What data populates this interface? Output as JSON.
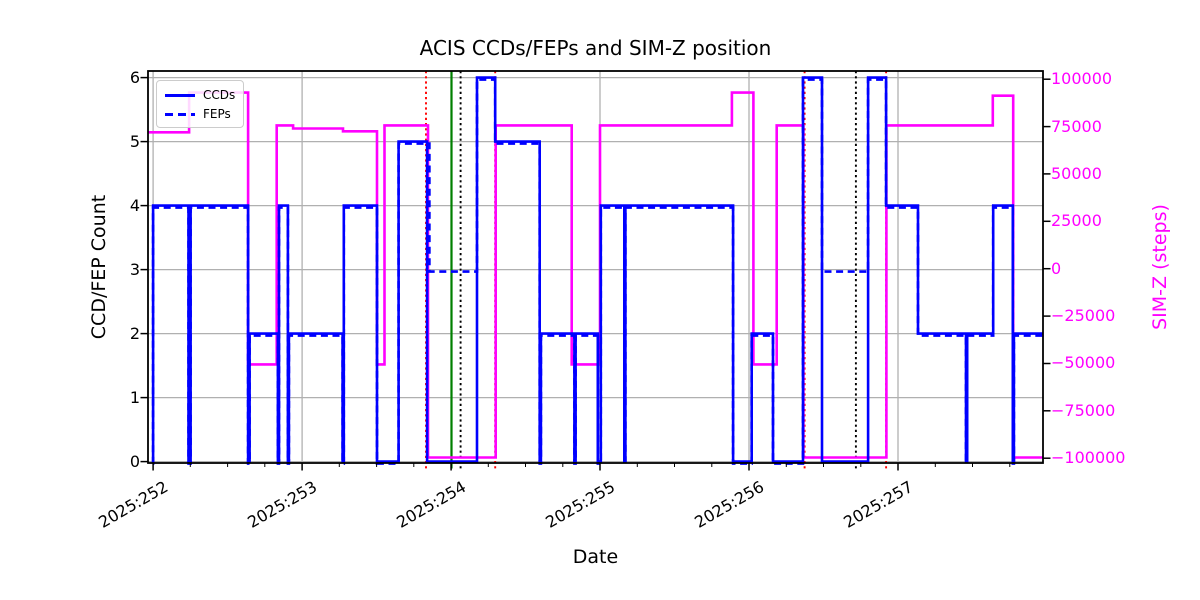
{
  "chart_data": {
    "type": "line",
    "title": "ACIS CCDs/FEPs and SIM-Z position",
    "xlabel": "Date",
    "ylabel_left": "CCD/FEP Count",
    "ylabel_right": "SIM-Z (steps)",
    "x_range": [
      252,
      258
    ],
    "ylim_left": [
      0,
      6
    ],
    "ylim_right": [
      -100000,
      100000
    ],
    "grid": true,
    "legend_position": "upper left",
    "x_ticks": [
      {
        "v": 252,
        "label": "2025:252"
      },
      {
        "v": 253,
        "label": "2025:253"
      },
      {
        "v": 254,
        "label": "2025:254"
      },
      {
        "v": 255,
        "label": "2025:255"
      },
      {
        "v": 256,
        "label": "2025:256"
      },
      {
        "v": 257,
        "label": "2025:257"
      }
    ],
    "x_minor_tick_step": 0.25,
    "y_ticks_left": [
      {
        "v": 0,
        "label": "0"
      },
      {
        "v": 1,
        "label": "1"
      },
      {
        "v": 2,
        "label": "2"
      },
      {
        "v": 3,
        "label": "3"
      },
      {
        "v": 4,
        "label": "4"
      },
      {
        "v": 5,
        "label": "5"
      },
      {
        "v": 6,
        "label": "6"
      }
    ],
    "y_ticks_right": [
      {
        "v": 100000,
        "label": "100000"
      },
      {
        "v": 75000,
        "label": "75000"
      },
      {
        "v": 50000,
        "label": "50000"
      },
      {
        "v": 25000,
        "label": "25000"
      },
      {
        "v": 0,
        "label": "0"
      },
      {
        "v": -25000,
        "label": "−25000"
      },
      {
        "v": -50000,
        "label": "−50000"
      },
      {
        "v": -75000,
        "label": "−75000"
      },
      {
        "v": -100000,
        "label": "−100000"
      }
    ],
    "legend": [
      {
        "label": "CCDs",
        "style": "solid",
        "color": "#0000ff"
      },
      {
        "label": "FEPs",
        "style": "dashed",
        "color": "#0000ff"
      }
    ],
    "colors": {
      "ccds": "#0000ff",
      "feps": "#0000ff",
      "simz": "#ff00ff",
      "grid": "#b0b0b0",
      "radzone_line": "#ff0000",
      "now_line": "#008000",
      "perigee_line": "#000000"
    },
    "x_end": 257.973,
    "series": [
      {
        "name": "SIM-Z",
        "axis": "right",
        "color": "#ff00ff",
        "dash": "none",
        "points": [
          [
            251.966,
            72000
          ],
          [
            252.242,
            92904
          ],
          [
            252.638,
            -50505
          ],
          [
            252.83,
            75624
          ],
          [
            252.94,
            74000
          ],
          [
            253.275,
            72500
          ],
          [
            253.503,
            -50505
          ],
          [
            253.553,
            75624
          ],
          [
            253.845,
            -99616
          ],
          [
            254.3,
            75624
          ],
          [
            254.81,
            -50505
          ],
          [
            255.0,
            75624
          ],
          [
            255.885,
            92904
          ],
          [
            256.029,
            -50505
          ],
          [
            256.186,
            75624
          ],
          [
            256.365,
            -99616
          ],
          [
            256.922,
            75624
          ],
          [
            257.636,
            91300
          ],
          [
            257.773,
            -99616
          ]
        ]
      },
      {
        "name": "CCDs",
        "axis": "left",
        "color": "#0000ff",
        "dash": "none",
        "points": [
          [
            251.999,
            0
          ],
          [
            252.0,
            4
          ],
          [
            252.238,
            0
          ],
          [
            252.252,
            4
          ],
          [
            252.638,
            0
          ],
          [
            252.648,
            2
          ],
          [
            252.838,
            0
          ],
          [
            252.845,
            4
          ],
          [
            252.905,
            0
          ],
          [
            252.912,
            2
          ],
          [
            253.272,
            0
          ],
          [
            253.28,
            4
          ],
          [
            253.503,
            0
          ],
          [
            253.648,
            5
          ],
          [
            253.839,
            0
          ],
          [
            254.174,
            6
          ],
          [
            254.296,
            5
          ],
          [
            254.595,
            0
          ],
          [
            254.603,
            2
          ],
          [
            254.828,
            0
          ],
          [
            254.836,
            2
          ],
          [
            254.985,
            0
          ],
          [
            255.005,
            4
          ],
          [
            255.163,
            0
          ],
          [
            255.17,
            4
          ],
          [
            255.893,
            0
          ],
          [
            256.018,
            2
          ],
          [
            256.161,
            0
          ],
          [
            256.362,
            6
          ],
          [
            256.49,
            0
          ],
          [
            256.799,
            6
          ],
          [
            256.92,
            4
          ],
          [
            257.134,
            2
          ],
          [
            257.456,
            0
          ],
          [
            257.464,
            2
          ],
          [
            257.639,
            4
          ],
          [
            257.77,
            0
          ],
          [
            257.778,
            2
          ]
        ]
      },
      {
        "name": "FEPs",
        "axis": "left",
        "color": "#0000ff",
        "dash": "dashed",
        "points": [
          [
            251.999,
            0
          ],
          [
            252.0,
            4
          ],
          [
            252.238,
            0
          ],
          [
            252.252,
            4
          ],
          [
            252.638,
            0
          ],
          [
            252.648,
            2
          ],
          [
            252.838,
            0
          ],
          [
            252.845,
            4
          ],
          [
            252.905,
            0
          ],
          [
            252.912,
            2
          ],
          [
            253.272,
            0
          ],
          [
            253.28,
            4
          ],
          [
            253.503,
            0
          ],
          [
            253.648,
            5
          ],
          [
            253.855,
            3
          ],
          [
            254.174,
            6
          ],
          [
            254.296,
            5
          ],
          [
            254.595,
            0
          ],
          [
            254.603,
            2
          ],
          [
            254.828,
            0
          ],
          [
            254.836,
            2
          ],
          [
            254.985,
            0
          ],
          [
            255.005,
            4
          ],
          [
            255.163,
            0
          ],
          [
            255.17,
            4
          ],
          [
            255.893,
            0
          ],
          [
            256.018,
            2
          ],
          [
            256.161,
            0
          ],
          [
            256.362,
            6
          ],
          [
            256.49,
            3
          ],
          [
            256.799,
            6
          ],
          [
            256.92,
            4
          ],
          [
            257.134,
            2
          ],
          [
            257.456,
            0
          ],
          [
            257.464,
            2
          ],
          [
            257.639,
            4
          ],
          [
            257.77,
            0
          ],
          [
            257.778,
            2
          ]
        ]
      }
    ],
    "vlines": [
      {
        "x": 253.832,
        "color": "#ff0000",
        "style": "dotted",
        "name": "radzone-entry-1"
      },
      {
        "x": 254.003,
        "color": "#008000",
        "style": "solid",
        "name": "current-time"
      },
      {
        "x": 254.064,
        "color": "#000000",
        "style": "dotted",
        "name": "perigee-1"
      },
      {
        "x": 254.296,
        "color": "#ff0000",
        "style": "dotted",
        "name": "radzone-exit-1"
      },
      {
        "x": 256.373,
        "color": "#ff0000",
        "style": "dotted",
        "name": "radzone-entry-2"
      },
      {
        "x": 256.717,
        "color": "#000000",
        "style": "dotted",
        "name": "perigee-2"
      },
      {
        "x": 256.92,
        "color": "#ff0000",
        "style": "dotted",
        "name": "radzone-exit-2"
      }
    ]
  }
}
